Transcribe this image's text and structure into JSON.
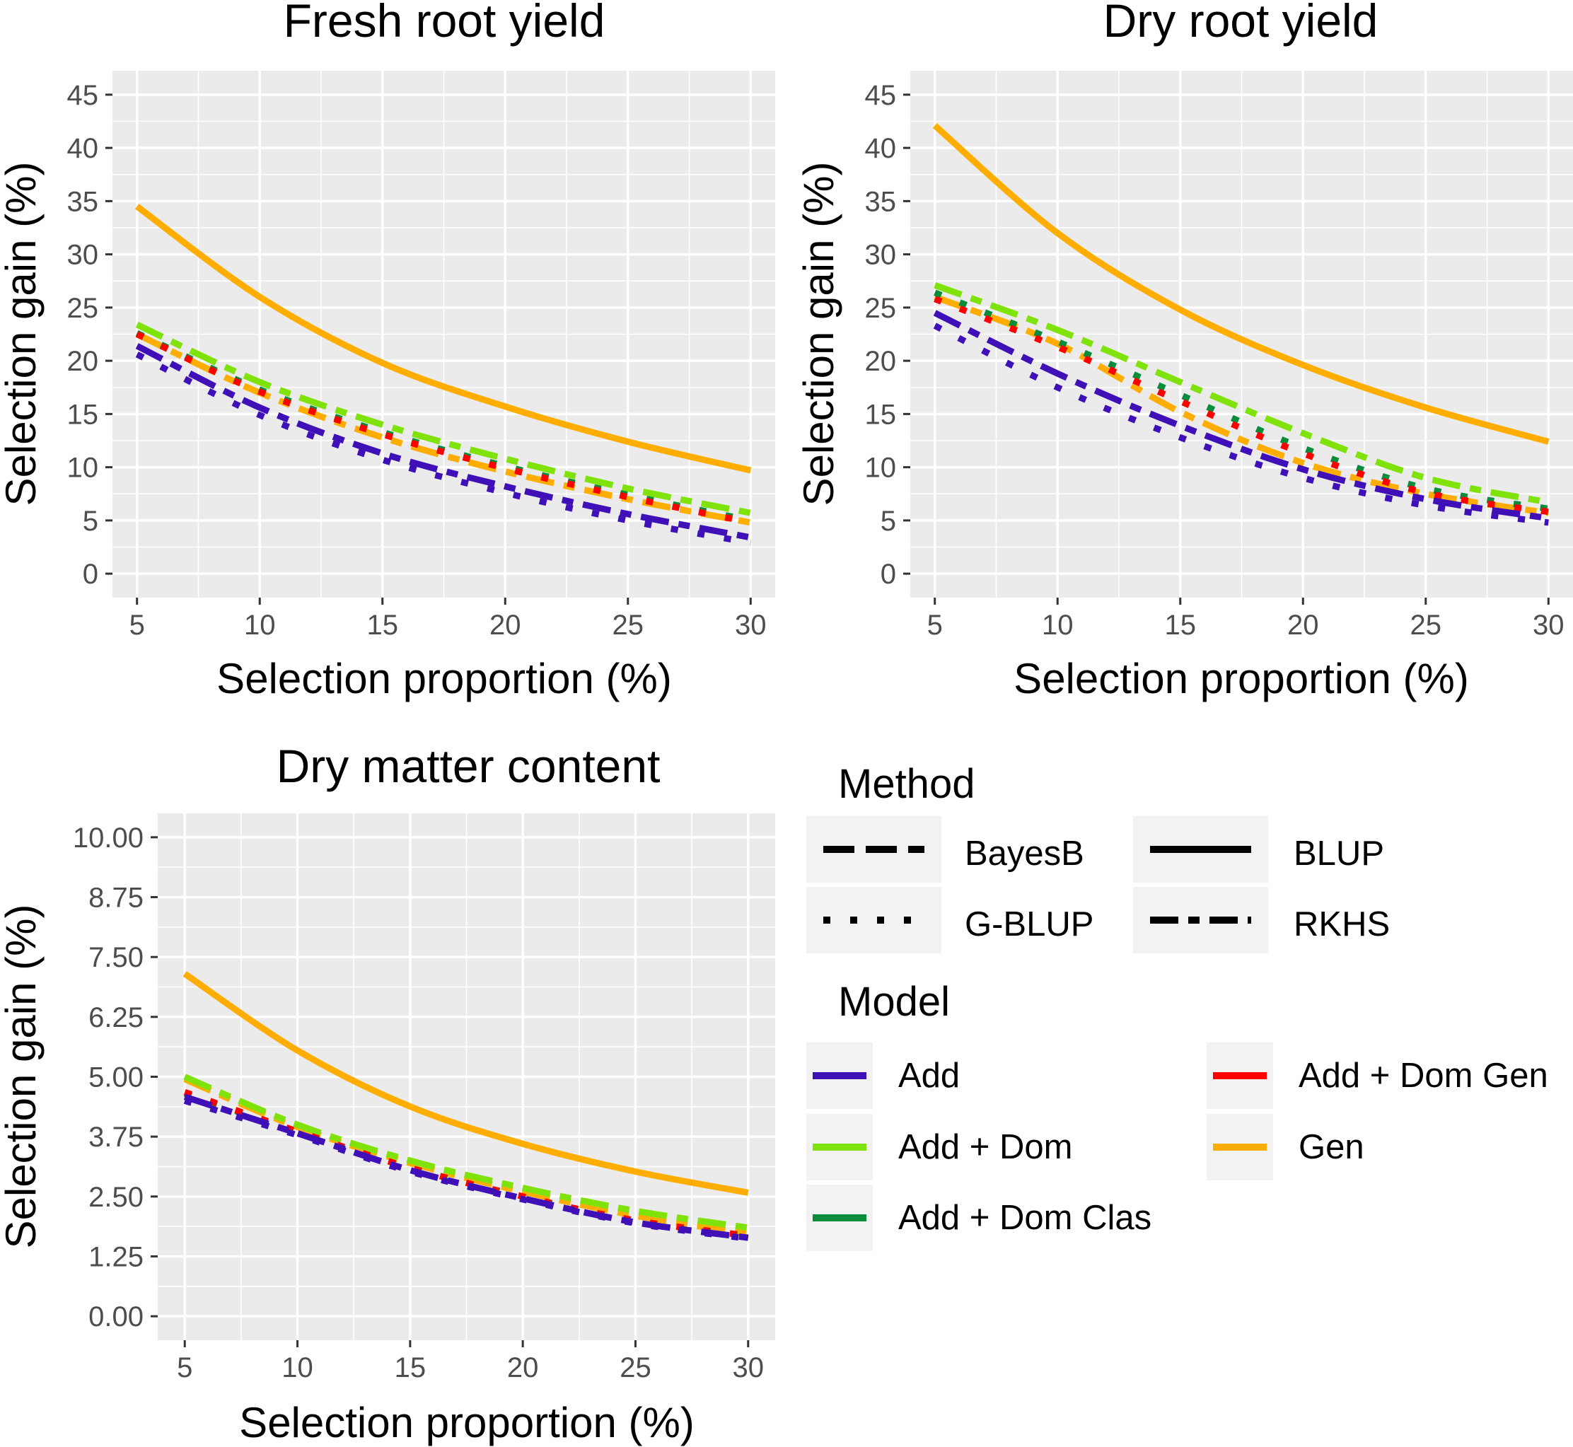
{
  "chart_data": [
    {
      "type": "line",
      "title": "Fresh root yield",
      "xlabel": "Selection proportion (%)",
      "ylabel": "Selection gain (%)",
      "xlim": [
        4.0,
        31.0
      ],
      "ylim": [
        -2.25,
        47.25
      ],
      "xticks": [
        5,
        10,
        15,
        20,
        25,
        30
      ],
      "yticks": [
        0,
        5,
        10,
        15,
        20,
        25,
        30,
        35,
        40,
        45
      ],
      "ytick_labels": [
        "0",
        "5",
        "10",
        "15",
        "20",
        "25",
        "30",
        "35",
        "40",
        "45"
      ],
      "x": [
        5,
        10,
        15,
        20,
        25,
        30
      ],
      "series": [
        {
          "method": "BLUP",
          "model": "Gen",
          "values": [
            34.5,
            26.0,
            19.8,
            15.7,
            12.4,
            9.7
          ]
        },
        {
          "method": "RKHS",
          "model": "Gen",
          "values": [
            22.5,
            17.0,
            12.8,
            9.6,
            7.0,
            4.8
          ]
        },
        {
          "method": "RKHS",
          "model": "Add + Dom",
          "values": [
            23.4,
            18.0,
            14.0,
            10.8,
            8.0,
            5.7
          ]
        },
        {
          "method": "G-BLUP",
          "model": "Add + Dom Clas",
          "values": [
            22.6,
            17.3,
            13.3,
            10.1,
            7.4,
            5.0
          ]
        },
        {
          "method": "G-BLUP",
          "model": "Add + Dom Gen",
          "values": [
            22.5,
            17.1,
            13.1,
            9.9,
            7.2,
            4.8
          ]
        },
        {
          "method": "RKHS",
          "model": "Add",
          "values": [
            21.4,
            15.6,
            11.3,
            8.2,
            5.6,
            3.4
          ]
        },
        {
          "method": "G-BLUP",
          "model": "Add",
          "values": [
            20.6,
            14.9,
            10.7,
            7.6,
            5.0,
            2.9
          ]
        }
      ]
    },
    {
      "type": "line",
      "title": "Dry root yield",
      "xlabel": "Selection proportion (%)",
      "ylabel": "Selection gain (%)",
      "xlim": [
        4.0,
        31.0
      ],
      "ylim": [
        -2.25,
        47.25
      ],
      "xticks": [
        5,
        10,
        15,
        20,
        25,
        30
      ],
      "yticks": [
        0,
        5,
        10,
        15,
        20,
        25,
        30,
        35,
        40,
        45
      ],
      "ytick_labels": [
        "0",
        "5",
        "10",
        "15",
        "20",
        "25",
        "30",
        "35",
        "40",
        "45"
      ],
      "x": [
        5,
        10,
        15,
        20,
        25,
        30
      ],
      "series": [
        {
          "method": "BLUP",
          "model": "Gen",
          "values": [
            42.1,
            32.0,
            24.8,
            19.6,
            15.6,
            12.4
          ]
        },
        {
          "method": "RKHS",
          "model": "Gen",
          "values": [
            26.0,
            21.6,
            15.2,
            10.4,
            7.5,
            5.7
          ]
        },
        {
          "method": "RKHS",
          "model": "Add + Dom",
          "values": [
            27.1,
            22.9,
            18.0,
            13.2,
            9.0,
            6.7
          ]
        },
        {
          "method": "G-BLUP",
          "model": "Add + Dom Clas",
          "values": [
            26.4,
            21.8,
            16.8,
            11.8,
            8.0,
            6.1
          ]
        },
        {
          "method": "G-BLUP",
          "model": "Add + Dom Gen",
          "values": [
            25.8,
            21.3,
            16.2,
            11.3,
            7.6,
            5.8
          ]
        },
        {
          "method": "RKHS",
          "model": "Add",
          "values": [
            24.5,
            18.8,
            13.9,
            9.8,
            7.0,
            5.2
          ]
        },
        {
          "method": "G-BLUP",
          "model": "Add",
          "values": [
            23.3,
            17.5,
            12.8,
            9.0,
            6.4,
            4.8
          ]
        }
      ]
    },
    {
      "type": "line",
      "title": "Dry matter content",
      "xlabel": "Selection proportion (%)",
      "ylabel": "Selection gain (%)",
      "xlim": [
        3.8,
        31.2
      ],
      "ylim": [
        -0.5,
        10.5
      ],
      "xticks": [
        5,
        10,
        15,
        20,
        25,
        30
      ],
      "yticks": [
        0,
        1.25,
        2.5,
        3.75,
        5,
        6.25,
        7.5,
        8.75,
        10
      ],
      "ytick_labels": [
        "0.00",
        "1.25",
        "2.50",
        "3.75",
        "5.00",
        "6.25",
        "7.50",
        "8.75",
        "10.00"
      ],
      "x": [
        5,
        10,
        15,
        20,
        25,
        30
      ],
      "series": [
        {
          "method": "BLUP",
          "model": "Gen",
          "values": [
            7.15,
            5.55,
            4.38,
            3.6,
            3.02,
            2.58
          ]
        },
        {
          "method": "RKHS",
          "model": "Gen",
          "values": [
            4.95,
            3.95,
            3.2,
            2.6,
            2.1,
            1.72
          ]
        },
        {
          "method": "RKHS",
          "model": "Add + Dom",
          "values": [
            5.0,
            4.0,
            3.25,
            2.68,
            2.2,
            1.85
          ]
        },
        {
          "method": "G-BLUP",
          "model": "Add + Dom Clas",
          "values": [
            4.65,
            3.85,
            3.1,
            2.5,
            2.0,
            1.68
          ]
        },
        {
          "method": "G-BLUP",
          "model": "Add + Dom Gen",
          "values": [
            4.68,
            3.86,
            3.1,
            2.5,
            2.0,
            1.68
          ]
        },
        {
          "method": "RKHS",
          "model": "Add",
          "values": [
            4.58,
            3.82,
            3.05,
            2.46,
            1.96,
            1.64
          ]
        },
        {
          "method": "G-BLUP",
          "model": "Add",
          "values": [
            4.5,
            3.78,
            3.02,
            2.44,
            1.94,
            1.62
          ]
        }
      ]
    }
  ],
  "legend": {
    "method_title": "Method",
    "methods": [
      {
        "name": "BayesB",
        "style": "longdash"
      },
      {
        "name": "G-BLUP",
        "style": "dotted"
      },
      {
        "name": "BLUP",
        "style": "solid"
      },
      {
        "name": "RKHS",
        "style": "twodash"
      }
    ],
    "model_title": "Model",
    "models": [
      {
        "name": "Add",
        "color": "#3f0fb7"
      },
      {
        "name": "Add + Dom",
        "color": "#7fe30b"
      },
      {
        "name": "Add + Dom Clas",
        "color": "#078c3c"
      },
      {
        "name": "Add + Dom Gen",
        "color": "#ff0000"
      },
      {
        "name": "Gen",
        "color": "#ffad00"
      }
    ]
  },
  "colors": {
    "panel_bg": "#ebebeb",
    "grid": "#ffffff",
    "tick_text": "#4d4d4d"
  }
}
